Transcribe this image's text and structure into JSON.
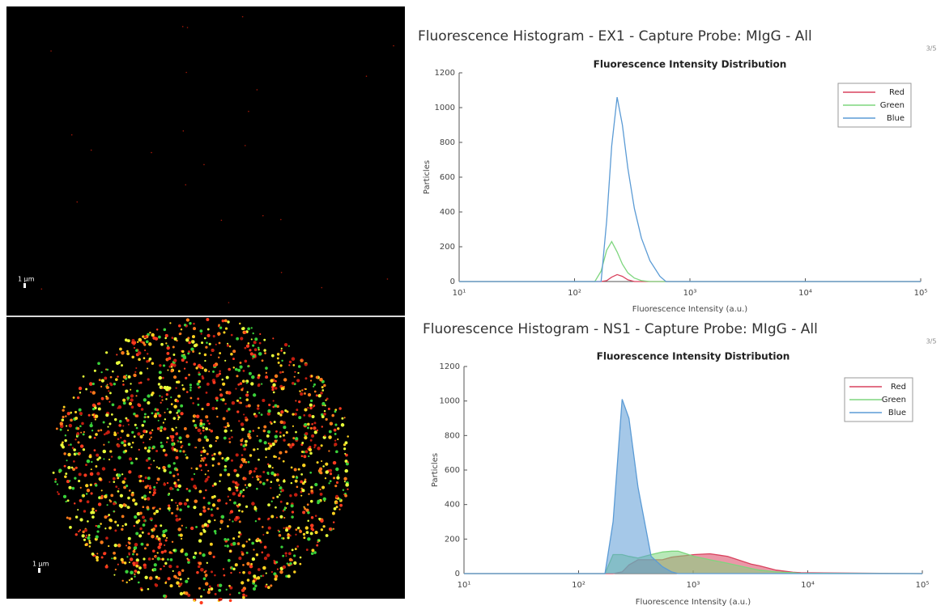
{
  "images": [
    {
      "scale_label": "1 µm"
    },
    {
      "scale_label": "1 µm"
    }
  ],
  "chart_data": [
    {
      "type": "line",
      "header": "Fluorescence Histogram - EX1 - Capture Probe: MIgG - All",
      "page_label": "3/5",
      "title": "Fluorescence Intensity Distribution",
      "x_label": "Fluorescence Intensity (a.u.)",
      "y_label": "Particles",
      "x_scale": "log",
      "fill": false,
      "legend": "upper right",
      "xlim": [
        10,
        100000
      ],
      "xticks": [
        {
          "value": 10,
          "label": "10¹"
        },
        {
          "value": 100,
          "label": "10²"
        },
        {
          "value": 1000,
          "label": "10³"
        },
        {
          "value": 10000,
          "label": "10⁴"
        },
        {
          "value": 100000,
          "label": "10⁵"
        }
      ],
      "ylim": [
        0,
        1200
      ],
      "yticks": [
        0,
        200,
        400,
        600,
        800,
        1000,
        1200
      ],
      "x": [
        10,
        150,
        170,
        190,
        210,
        234,
        260,
        290,
        330,
        380,
        450,
        550,
        620,
        100000
      ],
      "series": [
        {
          "name": "Red",
          "color": "#d9425e",
          "values": [
            0,
            0,
            0,
            5,
            25,
            40,
            30,
            10,
            0,
            0,
            0,
            0,
            0,
            0
          ]
        },
        {
          "name": "Green",
          "color": "#7ed67e",
          "values": [
            0,
            0,
            60,
            180,
            230,
            170,
            100,
            50,
            20,
            5,
            0,
            0,
            0,
            0
          ]
        },
        {
          "name": "Blue",
          "color": "#5b9bd5",
          "values": [
            0,
            0,
            0,
            350,
            780,
            1060,
            900,
            650,
            420,
            250,
            120,
            30,
            0,
            0
          ]
        }
      ]
    },
    {
      "type": "line",
      "header": "Fluorescence Histogram - NS1 - Capture Probe: MIgG - All",
      "page_label": "3/5",
      "title": "Fluorescence Intensity Distribution",
      "x_label": "Fluorescence Intensity (a.u.)",
      "y_label": "Particles",
      "x_scale": "log",
      "fill": true,
      "legend": "upper right",
      "xlim": [
        10,
        100000
      ],
      "xticks": [
        {
          "value": 10,
          "label": "10¹"
        },
        {
          "value": 100,
          "label": "10²"
        },
        {
          "value": 1000,
          "label": "10³"
        },
        {
          "value": 10000,
          "label": "10⁴"
        },
        {
          "value": 100000,
          "label": "10⁵"
        }
      ],
      "ylim": [
        0,
        1200
      ],
      "yticks": [
        0,
        200,
        400,
        600,
        800,
        1000,
        1200
      ],
      "x": [
        10,
        170,
        200,
        240,
        275,
        330,
        430,
        540,
        650,
        740,
        870,
        1020,
        1400,
        2000,
        3200,
        3800,
        5300,
        7400,
        8700,
        100000
      ],
      "series": [
        {
          "name": "Red",
          "color": "#d9425e",
          "values": [
            0,
            0,
            0,
            10,
            50,
            80,
            80,
            80,
            95,
            100,
            105,
            110,
            115,
            100,
            55,
            45,
            20,
            8,
            5,
            0
          ]
        },
        {
          "name": "Green",
          "color": "#7ed67e",
          "values": [
            0,
            0,
            110,
            110,
            100,
            90,
            110,
            125,
            130,
            130,
            115,
            100,
            80,
            60,
            30,
            20,
            10,
            5,
            2,
            0
          ]
        },
        {
          "name": "Blue",
          "color": "#5b9bd5",
          "values": [
            0,
            0,
            300,
            1010,
            900,
            500,
            100,
            40,
            10,
            0,
            0,
            0,
            0,
            0,
            0,
            0,
            0,
            0,
            0,
            0
          ]
        }
      ]
    }
  ]
}
